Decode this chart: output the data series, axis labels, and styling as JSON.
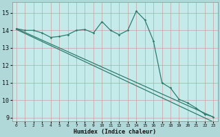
{
  "xlabel": "Humidex (Indice chaleur)",
  "background_color": "#b0d8d8",
  "plot_bg_color": "#c5eaea",
  "grid_color": "#d0e8e8",
  "line_color": "#2e7b6e",
  "xlim": [
    -0.5,
    23.5
  ],
  "ylim": [
    8.8,
    15.6
  ],
  "xticks": [
    0,
    1,
    2,
    3,
    4,
    5,
    6,
    7,
    8,
    9,
    10,
    11,
    12,
    13,
    14,
    15,
    16,
    17,
    18,
    19,
    20,
    21,
    22,
    23
  ],
  "yticks": [
    9,
    10,
    11,
    12,
    13,
    14,
    15
  ],
  "series1_x": [
    0,
    1,
    2,
    3,
    4,
    5,
    6,
    7,
    8,
    9,
    10,
    11,
    12,
    13,
    14,
    15,
    16,
    17,
    18,
    19,
    20,
    21,
    22,
    23
  ],
  "series1_y": [
    14.1,
    14.0,
    14.0,
    13.85,
    13.6,
    13.65,
    13.75,
    14.0,
    14.05,
    13.85,
    14.5,
    14.0,
    13.75,
    14.0,
    15.1,
    14.6,
    13.4,
    11.0,
    10.7,
    10.05,
    9.85,
    9.55,
    9.2,
    9.05
  ],
  "series2_x": [
    0,
    1,
    2,
    3,
    4,
    5,
    6,
    7,
    8,
    9,
    10,
    11,
    12,
    13,
    14,
    15,
    16,
    17,
    18,
    19,
    20,
    21,
    22,
    23
  ],
  "series2_y": [
    14.1,
    13.88,
    13.66,
    13.44,
    13.22,
    13.0,
    12.78,
    12.56,
    12.34,
    12.12,
    11.9,
    11.68,
    11.46,
    11.24,
    11.02,
    10.8,
    10.58,
    10.36,
    10.14,
    9.92,
    9.7,
    9.48,
    9.26,
    9.04
  ],
  "series3_x": [
    0,
    1,
    2,
    3,
    4,
    5,
    6,
    7,
    8,
    9,
    10,
    11,
    12,
    13,
    14,
    15,
    16,
    17,
    18,
    19,
    20,
    21,
    22,
    23
  ],
  "series3_y": [
    14.05,
    13.82,
    13.59,
    13.36,
    13.13,
    12.9,
    12.67,
    12.44,
    12.21,
    11.98,
    11.75,
    11.52,
    11.29,
    11.06,
    10.83,
    10.6,
    10.37,
    10.14,
    9.91,
    9.68,
    9.45,
    9.22,
    8.99,
    8.76
  ]
}
